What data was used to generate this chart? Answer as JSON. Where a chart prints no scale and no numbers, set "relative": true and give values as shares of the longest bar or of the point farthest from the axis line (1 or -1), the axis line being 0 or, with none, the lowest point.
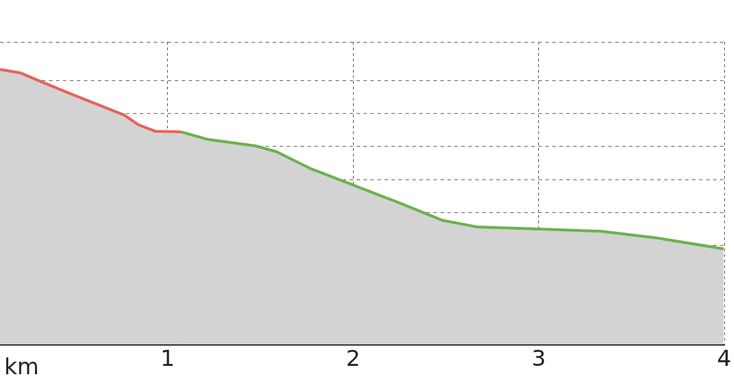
{
  "chart_data": {
    "type": "area",
    "relative": true,
    "xlabel": "km",
    "xlim": [
      0.097,
      4.0
    ],
    "xticks": [
      1,
      2,
      3,
      4
    ],
    "grid": true,
    "legend": false,
    "series": [
      {
        "color": "#e8625c",
        "x": [
          0.097,
          0.209,
          0.32,
          0.469,
          0.618,
          0.767,
          0.842,
          0.935,
          1.073
        ],
        "values": [
          1.0,
          0.987,
          0.955,
          0.914,
          0.874,
          0.834,
          0.799,
          0.775,
          0.773
        ]
      },
      {
        "color": "#6cb24e",
        "x": [
          1.073,
          1.214,
          1.475,
          1.587,
          1.773,
          2.0,
          2.257,
          2.48,
          2.667,
          3.0,
          3.337,
          3.635,
          3.997
        ],
        "values": [
          0.773,
          0.746,
          0.722,
          0.701,
          0.639,
          0.58,
          0.513,
          0.452,
          0.428,
          0.42,
          0.412,
          0.388,
          0.348
        ]
      }
    ]
  }
}
